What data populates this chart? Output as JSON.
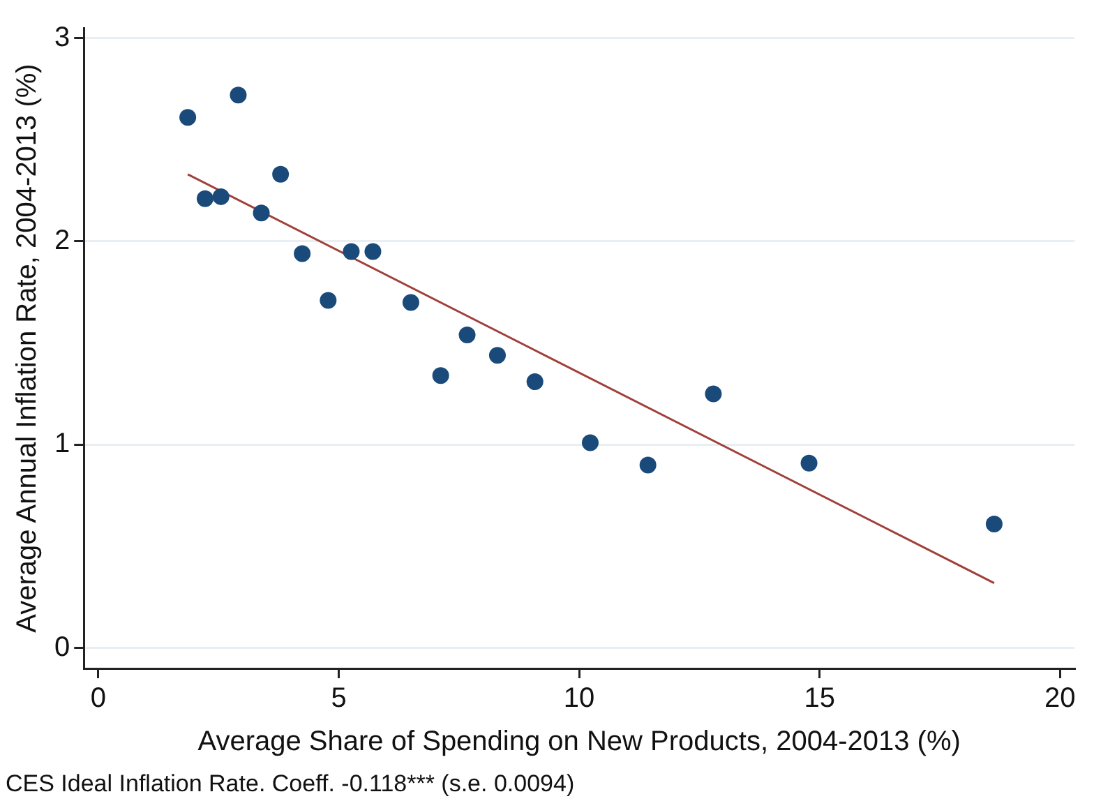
{
  "chart_data": {
    "type": "scatter",
    "xlabel": "Average Share of Spending on New Products, 2004-2013 (%)",
    "ylabel": "Average Annual Inflation Rate, 2004-2013 (%)",
    "annotations": [
      "CES Ideal Inflation Rate. Coeff. -0.118*** (s.e. 0.0094)"
    ],
    "series": [
      {
        "type": "scatter",
        "marker": "circle",
        "color": "#1a4a7a",
        "x": [
          1.86,
          2.91,
          2.22,
          2.55,
          3.79,
          3.39,
          4.24,
          5.26,
          5.71,
          4.78,
          6.5,
          7.12,
          7.67,
          8.3,
          9.08,
          10.23,
          11.43,
          12.79,
          14.78,
          18.63
        ],
        "values": [
          2.61,
          2.72,
          2.21,
          2.22,
          2.33,
          2.14,
          1.94,
          1.95,
          1.95,
          1.71,
          1.7,
          1.34,
          1.54,
          1.44,
          1.31,
          1.01,
          0.9,
          1.25,
          0.91,
          0.61
        ]
      },
      {
        "type": "line",
        "marker": "none",
        "color": "#a0403a",
        "x": [
          1.86,
          18.63
        ],
        "values": [
          2.33,
          0.32
        ]
      }
    ],
    "xlim": [
      -0.3,
      20.3
    ],
    "xticks": [
      0,
      5,
      10,
      15,
      20
    ],
    "ylim": [
      -0.1,
      3.05
    ],
    "yticks": [
      0,
      1,
      2,
      3
    ],
    "grid": "y",
    "legend": false
  }
}
